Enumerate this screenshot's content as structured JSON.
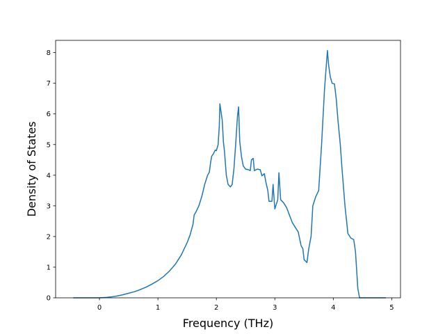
{
  "chart_data": {
    "type": "line",
    "title": "",
    "xlabel": "Frequency (THz)",
    "ylabel": "Density of States",
    "xlim": [
      -0.75,
      5.15
    ],
    "ylim": [
      0,
      8.4
    ],
    "xticks": [
      0,
      1,
      2,
      3,
      4,
      5
    ],
    "yticks": [
      0,
      1,
      2,
      3,
      4,
      5,
      6,
      7,
      8
    ],
    "grid": false,
    "legend": "none",
    "series": [
      {
        "color": "#1f77b4",
        "points": [
          [
            -0.45,
            0.0
          ],
          [
            0.0,
            0.0
          ],
          [
            0.1,
            0.01
          ],
          [
            0.2,
            0.03
          ],
          [
            0.3,
            0.06
          ],
          [
            0.4,
            0.1
          ],
          [
            0.5,
            0.15
          ],
          [
            0.6,
            0.2
          ],
          [
            0.7,
            0.27
          ],
          [
            0.8,
            0.35
          ],
          [
            0.9,
            0.45
          ],
          [
            1.0,
            0.56
          ],
          [
            1.1,
            0.7
          ],
          [
            1.2,
            0.88
          ],
          [
            1.3,
            1.1
          ],
          [
            1.4,
            1.4
          ],
          [
            1.5,
            1.8
          ],
          [
            1.55,
            2.05
          ],
          [
            1.6,
            2.4
          ],
          [
            1.62,
            2.7
          ],
          [
            1.65,
            2.8
          ],
          [
            1.7,
            3.0
          ],
          [
            1.75,
            3.3
          ],
          [
            1.8,
            3.7
          ],
          [
            1.85,
            4.0
          ],
          [
            1.88,
            4.1
          ],
          [
            1.9,
            4.4
          ],
          [
            1.92,
            4.62
          ],
          [
            1.95,
            4.7
          ],
          [
            1.98,
            4.82
          ],
          [
            2.0,
            4.8
          ],
          [
            2.03,
            5.0
          ],
          [
            2.05,
            5.6
          ],
          [
            2.06,
            6.33
          ],
          [
            2.1,
            5.8
          ],
          [
            2.12,
            5.1
          ],
          [
            2.14,
            4.75
          ],
          [
            2.17,
            4.0
          ],
          [
            2.2,
            3.7
          ],
          [
            2.24,
            3.62
          ],
          [
            2.27,
            3.7
          ],
          [
            2.3,
            4.2
          ],
          [
            2.33,
            5.0
          ],
          [
            2.36,
            5.9
          ],
          [
            2.38,
            6.23
          ],
          [
            2.4,
            5.1
          ],
          [
            2.43,
            4.6
          ],
          [
            2.46,
            4.3
          ],
          [
            2.5,
            4.2
          ],
          [
            2.55,
            4.18
          ],
          [
            2.58,
            4.15
          ],
          [
            2.6,
            4.5
          ],
          [
            2.63,
            4.55
          ],
          [
            2.65,
            4.15
          ],
          [
            2.7,
            4.2
          ],
          [
            2.75,
            4.18
          ],
          [
            2.78,
            3.98
          ],
          [
            2.82,
            4.05
          ],
          [
            2.85,
            3.75
          ],
          [
            2.88,
            3.5
          ],
          [
            2.9,
            3.15
          ],
          [
            2.95,
            3.15
          ],
          [
            2.97,
            3.7
          ],
          [
            3.0,
            2.9
          ],
          [
            3.05,
            3.2
          ],
          [
            3.07,
            4.08
          ],
          [
            3.1,
            3.2
          ],
          [
            3.15,
            3.1
          ],
          [
            3.2,
            2.95
          ],
          [
            3.25,
            2.7
          ],
          [
            3.3,
            2.45
          ],
          [
            3.35,
            2.3
          ],
          [
            3.4,
            2.15
          ],
          [
            3.45,
            1.7
          ],
          [
            3.48,
            1.6
          ],
          [
            3.5,
            1.25
          ],
          [
            3.55,
            1.15
          ],
          [
            3.58,
            1.6
          ],
          [
            3.62,
            2.0
          ],
          [
            3.65,
            3.0
          ],
          [
            3.7,
            3.3
          ],
          [
            3.75,
            3.5
          ],
          [
            3.8,
            5.0
          ],
          [
            3.85,
            6.8
          ],
          [
            3.9,
            8.07
          ],
          [
            3.92,
            7.6
          ],
          [
            3.95,
            7.2
          ],
          [
            3.98,
            7.0
          ],
          [
            4.02,
            6.98
          ],
          [
            4.05,
            6.5
          ],
          [
            4.08,
            5.8
          ],
          [
            4.12,
            5.0
          ],
          [
            4.15,
            4.2
          ],
          [
            4.2,
            3.0
          ],
          [
            4.25,
            2.1
          ],
          [
            4.3,
            1.95
          ],
          [
            4.35,
            1.9
          ],
          [
            4.38,
            1.5
          ],
          [
            4.42,
            0.3
          ],
          [
            4.45,
            0.0
          ],
          [
            4.5,
            0.0
          ],
          [
            4.9,
            0.0
          ]
        ]
      }
    ]
  }
}
